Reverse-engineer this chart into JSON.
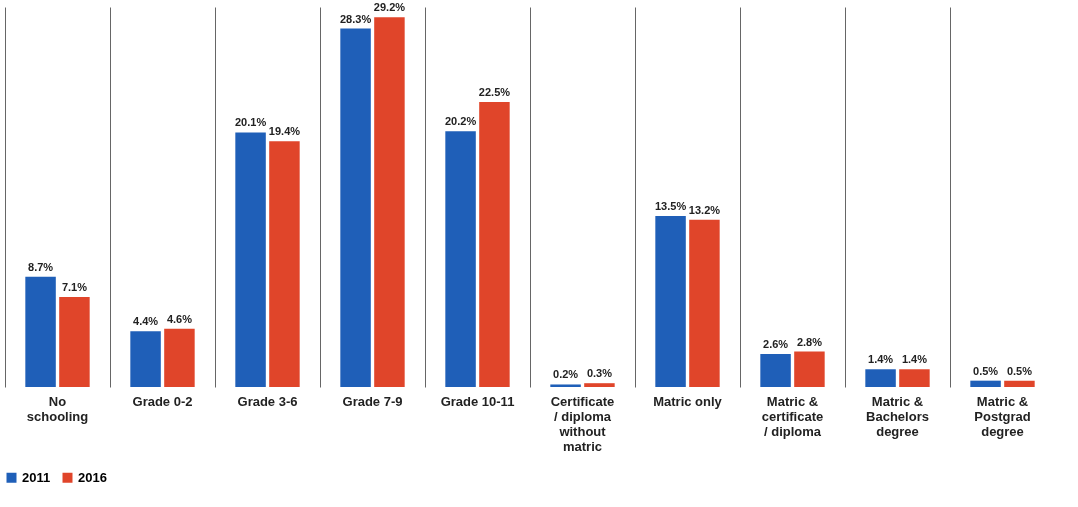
{
  "chart_data": {
    "type": "bar",
    "categories": [
      "No schooling",
      "Grade 0-2",
      "Grade 3-6",
      "Grade 7-9",
      "Grade 10-11",
      "Certificate / diploma without matric",
      "Matric only",
      "Matric & certificate / diploma",
      "Matric & Bachelors degree",
      "Matric & Postgrad degree"
    ],
    "series": [
      {
        "name": "2011",
        "color": "#1f5fb8",
        "values": [
          8.7,
          4.4,
          20.1,
          28.3,
          20.2,
          0.2,
          13.5,
          2.6,
          1.4,
          0.5
        ],
        "value_labels": [
          "8.7%",
          "4.4%",
          "20.1%",
          "28.3%",
          "20.2%",
          "0.2%",
          "13.5%",
          "2.6%",
          "1.4%",
          "0.5%"
        ]
      },
      {
        "name": "2016",
        "color": "#e0452a",
        "values": [
          7.1,
          4.6,
          19.4,
          29.2,
          22.5,
          0.3,
          13.2,
          2.8,
          1.4,
          0.5
        ],
        "value_labels": [
          "7.1%",
          "4.6%",
          "19.4%",
          "29.2%",
          "22.5%",
          "0.3%",
          "13.2%",
          "2.8%",
          "1.4%",
          "0.5%"
        ]
      }
    ],
    "grid": "x",
    "legend": "bottom"
  }
}
